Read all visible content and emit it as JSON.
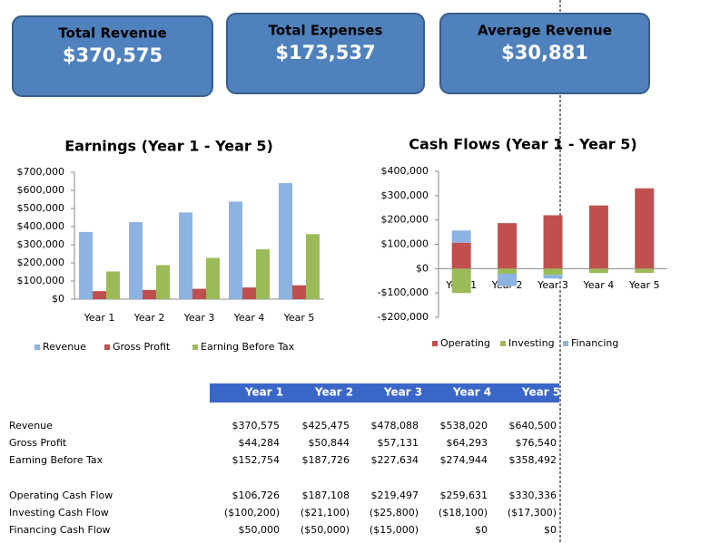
{
  "kpis": [
    {
      "title": "Total Revenue",
      "value": "$370,575"
    },
    {
      "title": "Total Expenses",
      "value": "$173,537"
    },
    {
      "title": "Average Revenue",
      "value": "$30,881"
    }
  ],
  "chart_data": [
    {
      "type": "bar",
      "title": "Earnings (Year 1 - Year 5)",
      "categories": [
        "Year 1",
        "Year 2",
        "Year 3",
        "Year 4",
        "Year 5"
      ],
      "series": [
        {
          "name": "Revenue",
          "color": "#8db3e2",
          "values": [
            370575,
            425475,
            478088,
            538020,
            640500
          ]
        },
        {
          "name": "Gross Profit",
          "color": "#c0504d",
          "values": [
            44284,
            50844,
            57131,
            64293,
            76540
          ]
        },
        {
          "name": "Earning Before Tax",
          "color": "#9bbb59",
          "values": [
            152754,
            187726,
            227634,
            274944,
            358492
          ]
        }
      ],
      "ylim": [
        0,
        700000
      ],
      "yticks": [
        {
          "value": 0,
          "label": "$0"
        },
        {
          "value": 100000,
          "label": "$100,000"
        },
        {
          "value": 200000,
          "label": "$200,000"
        },
        {
          "value": 300000,
          "label": "$300,000"
        },
        {
          "value": 400000,
          "label": "$400,000"
        },
        {
          "value": 500000,
          "label": "$500,000"
        },
        {
          "value": 600000,
          "label": "$600,000"
        },
        {
          "value": 700000,
          "label": "$700,000"
        }
      ],
      "legend": "bottom"
    },
    {
      "type": "bar",
      "title": "Cash Flows (Year 1 - Year 5)",
      "stacked": true,
      "categories": [
        "Year 1",
        "Year 2",
        "Year 3",
        "Year 4",
        "Year 5"
      ],
      "series": [
        {
          "name": "Operating",
          "color": "#c0504d",
          "values": [
            106726,
            187108,
            219497,
            259631,
            330336
          ]
        },
        {
          "name": "Investing",
          "color": "#9bbb59",
          "values": [
            -100200,
            -21100,
            -25800,
            -18100,
            -17300
          ]
        },
        {
          "name": "Financing",
          "color": "#8db3e2",
          "values": [
            50000,
            -50000,
            -15000,
            0,
            0
          ]
        }
      ],
      "ylim": [
        -200000,
        400000
      ],
      "yticks": [
        {
          "value": -200000,
          "label": "-$200,000"
        },
        {
          "value": -100000,
          "label": "-$100,000"
        },
        {
          "value": 0,
          "label": "$0"
        },
        {
          "value": 100000,
          "label": "$100,000"
        },
        {
          "value": 200000,
          "label": "$200,000"
        },
        {
          "value": 300000,
          "label": "$300,000"
        },
        {
          "value": 400000,
          "label": "$400,000"
        }
      ],
      "legend": "bottom"
    }
  ],
  "table": {
    "columns": [
      "Year 1",
      "Year 2",
      "Year 3",
      "Year 4",
      "Year 5"
    ],
    "sections": [
      [
        {
          "label": "Revenue",
          "cells": [
            "$370,575",
            "$425,475",
            "$478,088",
            "$538,020",
            "$640,500"
          ]
        },
        {
          "label": "Gross Profit",
          "cells": [
            "$44,284",
            "$50,844",
            "$57,131",
            "$64,293",
            "$76,540"
          ]
        },
        {
          "label": "Earning Before Tax",
          "cells": [
            "$152,754",
            "$187,726",
            "$227,634",
            "$274,944",
            "$358,492"
          ]
        }
      ],
      [
        {
          "label": "Operating Cash Flow",
          "cells": [
            "$106,726",
            "$187,108",
            "$219,497",
            "$259,631",
            "$330,336"
          ]
        },
        {
          "label": "Investing Cash Flow",
          "cells": [
            "($100,200)",
            "($21,100)",
            "($25,800)",
            "($18,100)",
            "($17,300)"
          ]
        },
        {
          "label": "Financing Cash Flow",
          "cells": [
            "$50,000",
            "($50,000)",
            "($15,000)",
            "$0",
            "$0"
          ]
        }
      ]
    ]
  }
}
